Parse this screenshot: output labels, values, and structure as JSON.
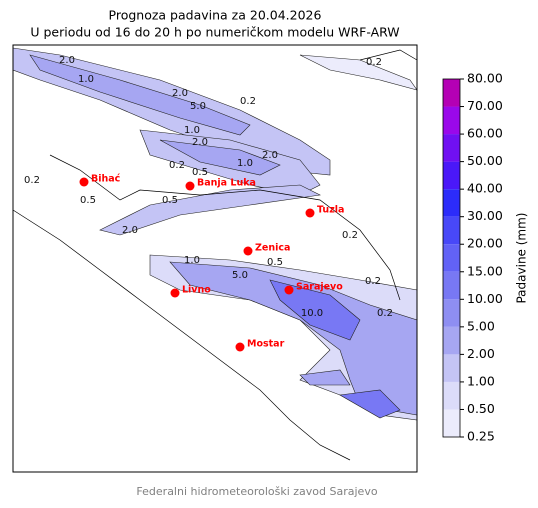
{
  "title": "Prognoza padavina za 20.04.2026",
  "subtitle": "U periodu od 16 do 20 h po numeričkom modelu WRF-ARW",
  "footer": "Federalni hidrometeorološki zavod Sarajevo",
  "colorbar": {
    "label": "Padavine (mm)",
    "ticks": [
      {
        "value": 0.25,
        "label": "0.25"
      },
      {
        "value": 0.5,
        "label": "0.50"
      },
      {
        "value": 1,
        "label": "1.00"
      },
      {
        "value": 2,
        "label": "2.00"
      },
      {
        "value": 5,
        "label": "5.00"
      },
      {
        "value": 10,
        "label": "10.00"
      },
      {
        "value": 15,
        "label": "15.00"
      },
      {
        "value": 20,
        "label": "20.00"
      },
      {
        "value": 30,
        "label": "30.00"
      },
      {
        "value": 40,
        "label": "40.00"
      },
      {
        "value": 50,
        "label": "50.00"
      },
      {
        "value": 60,
        "label": "60.00"
      },
      {
        "value": 70,
        "label": "70.00"
      },
      {
        "value": 80,
        "label": "80.00"
      }
    ],
    "colors": [
      "#ececfc",
      "#dcdcf9",
      "#c4c4f5",
      "#a6a6f2",
      "#8e8ef2",
      "#7878f4",
      "#6262f6",
      "#4848f8",
      "#2c2cfa",
      "#4a18f8",
      "#7010f2",
      "#9a08ea",
      "#b400b4"
    ]
  },
  "cities": [
    "Bihać",
    "Banja Luka",
    "Tuzla",
    "Zenica",
    "Livno",
    "Sarajevo",
    "Mostar"
  ],
  "contour_labels": [
    "2.0",
    "1.0",
    "0.5",
    "0.2",
    "2.0",
    "5.0",
    "0.2",
    "1.0",
    "2.0",
    "0.2",
    "0.5",
    "1.0",
    "2.0",
    "0.2",
    "0.5",
    "2.0",
    "1.0",
    "0.5",
    "5.0",
    "10.0",
    "0.2",
    "0.2",
    "0.2"
  ]
}
